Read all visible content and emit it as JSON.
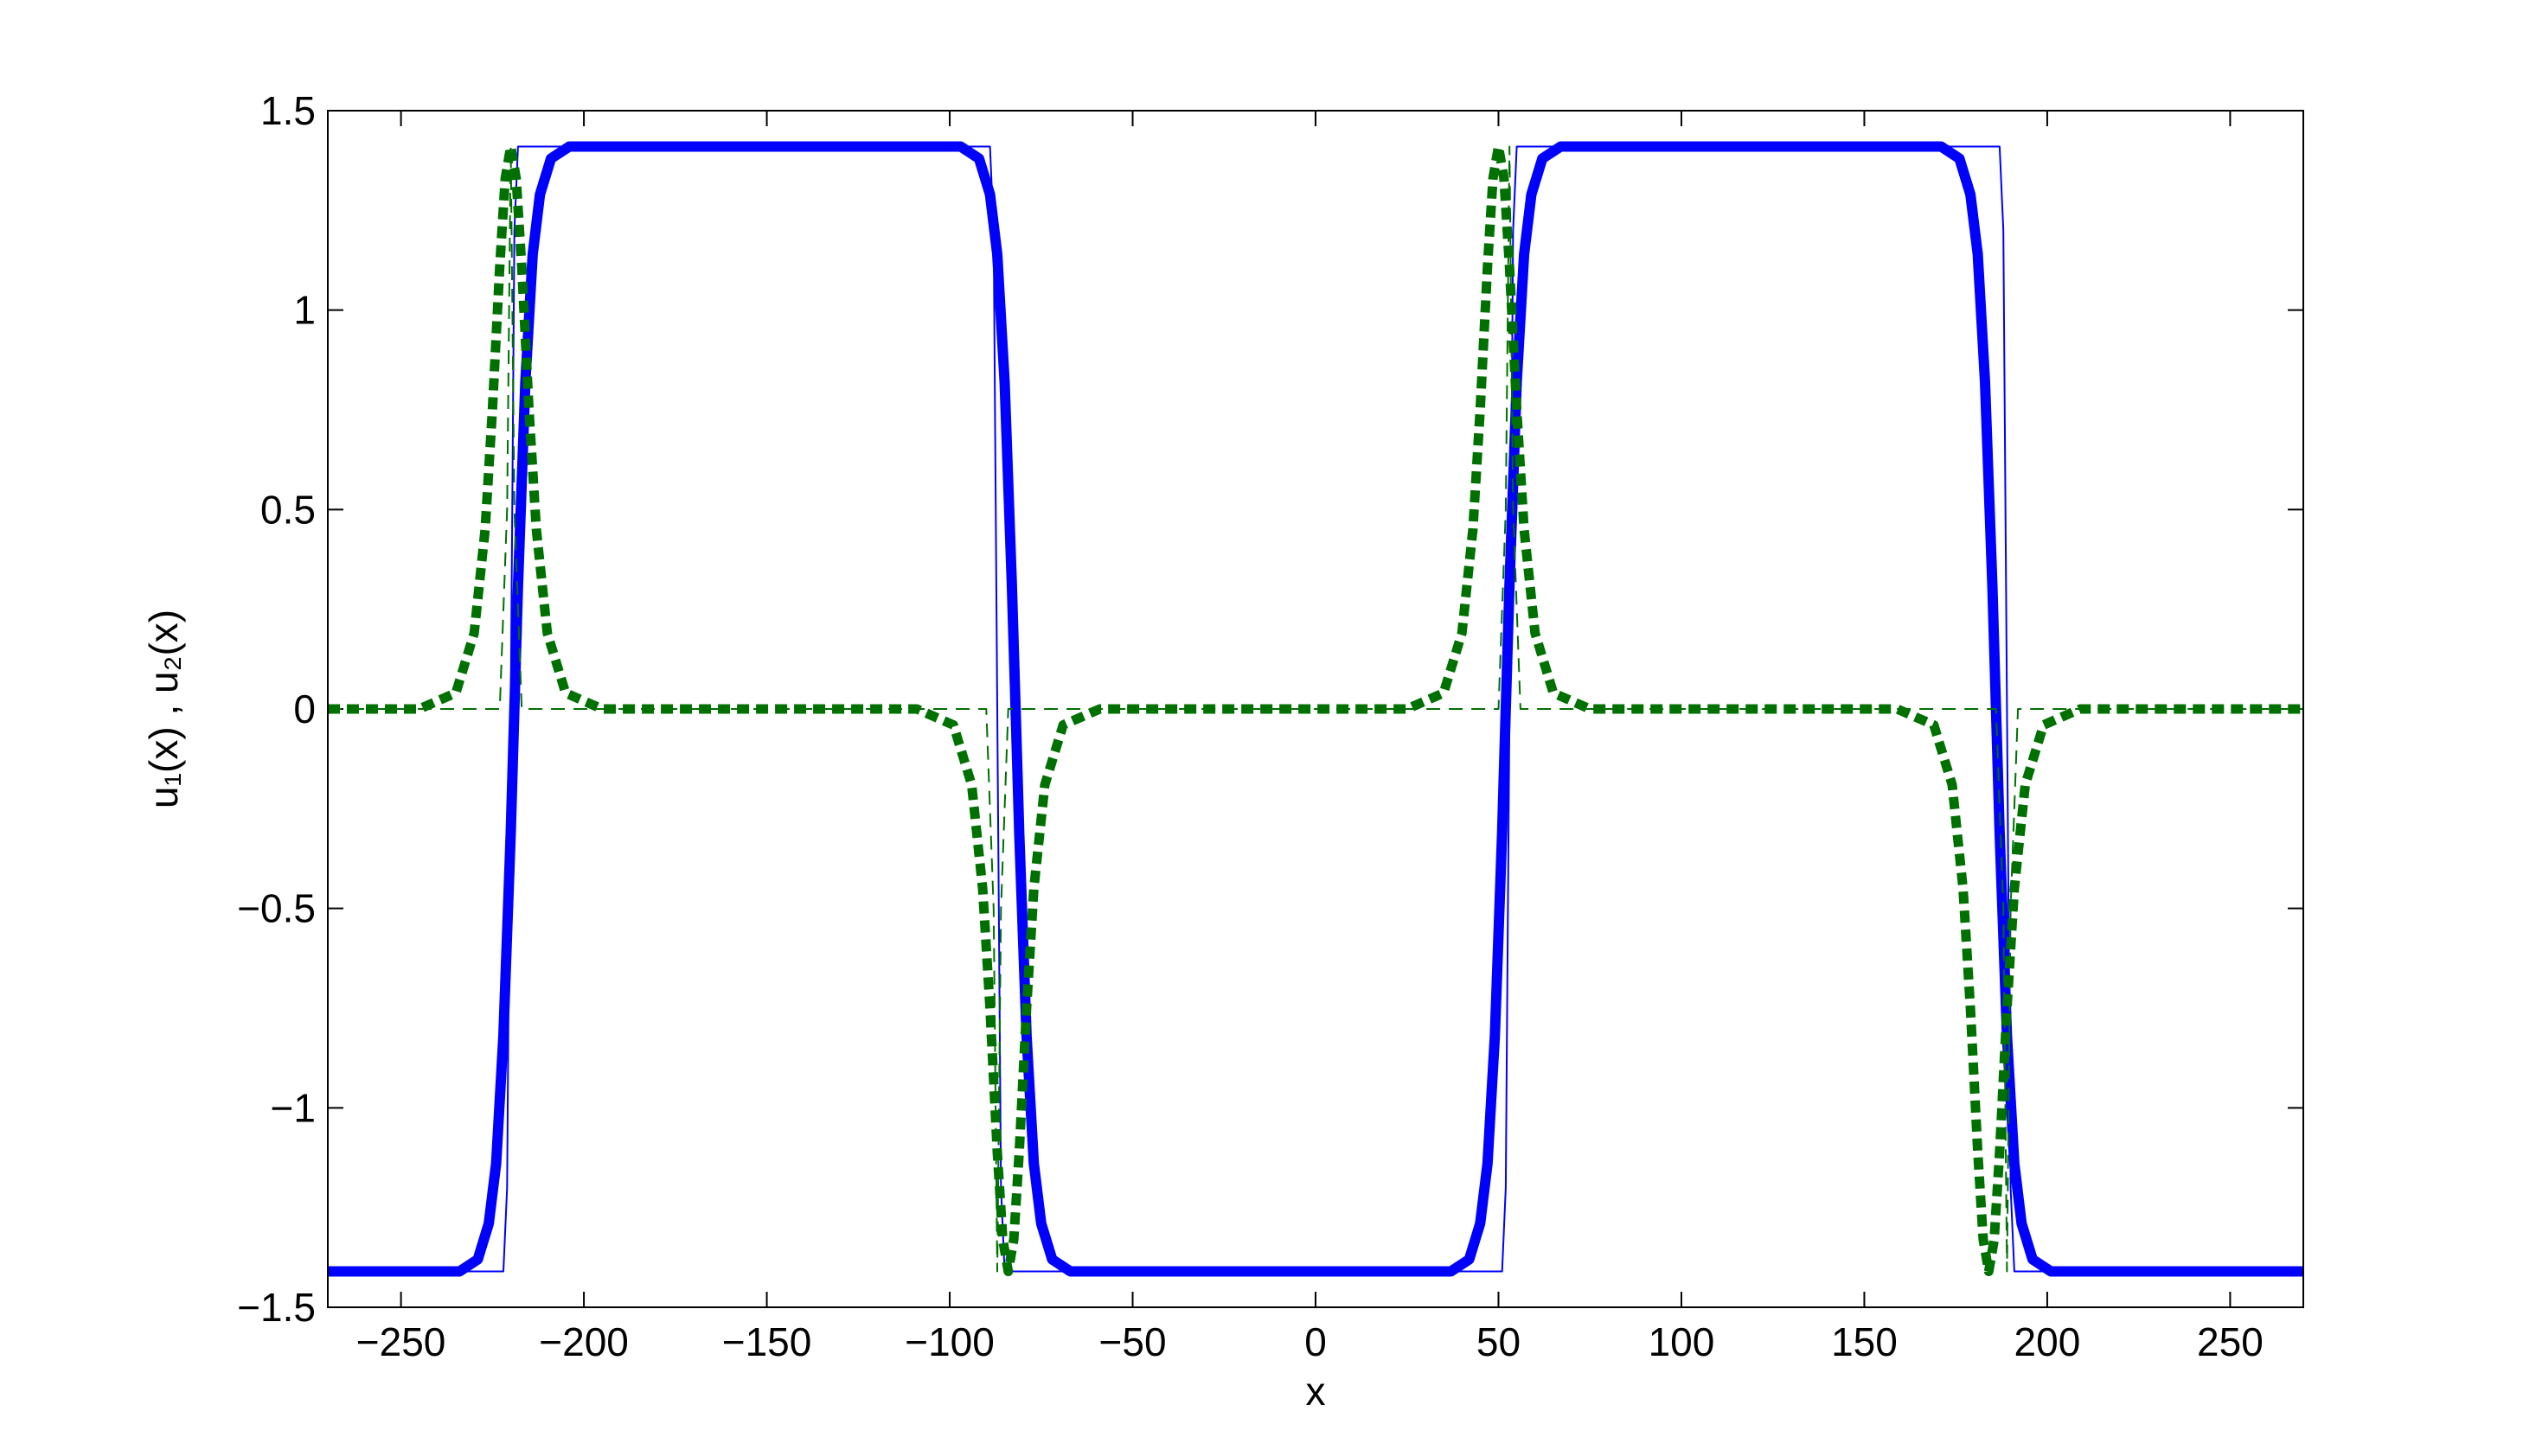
{
  "chart_data": {
    "type": "line",
    "x_label": "x",
    "y_label": "u₁(x) , u₂(x)",
    "xlim": [
      -270,
      270
    ],
    "ylim": [
      -1.5,
      1.5
    ],
    "xticks": [
      {
        "value": -250,
        "label": "−250"
      },
      {
        "value": -200,
        "label": "−200"
      },
      {
        "value": -150,
        "label": "−150"
      },
      {
        "value": -100,
        "label": "−100"
      },
      {
        "value": -50,
        "label": "−50"
      },
      0,
      50,
      100,
      150,
      200,
      250
    ],
    "yticks": [
      {
        "value": -1.5,
        "label": "−1.5"
      },
      {
        "value": -1,
        "label": "−1"
      },
      {
        "value": -0.5,
        "label": "−0.5"
      },
      0,
      0.5,
      1,
      1.5
    ],
    "grid": false,
    "series": [
      {
        "color": "#0000ff",
        "style": "solid",
        "width": "thick",
        "x": [
          -270,
          -234,
          -229,
          -226,
          -224,
          -222,
          -220,
          -219,
          -218,
          -216,
          -214,
          -212,
          -209,
          -204,
          -97,
          -92,
          -89,
          -87,
          -85,
          -83,
          -82,
          -81,
          -79,
          -77,
          -75,
          -72,
          -67,
          37,
          42,
          45,
          47,
          49,
          51,
          52,
          53,
          55,
          57,
          59,
          62,
          67,
          171,
          176,
          179,
          181,
          183,
          185,
          186,
          187,
          189,
          191,
          193,
          196,
          201,
          270
        ],
        "values": [
          -1.41,
          -1.41,
          -1.38,
          -1.29,
          -1.14,
          -0.82,
          -0.31,
          0,
          0.31,
          0.82,
          1.14,
          1.29,
          1.38,
          1.41,
          1.41,
          1.38,
          1.29,
          1.14,
          0.82,
          0.31,
          0,
          -0.31,
          -0.82,
          -1.14,
          -1.29,
          -1.38,
          -1.41,
          -1.41,
          -1.38,
          -1.29,
          -1.14,
          -0.82,
          -0.31,
          0,
          0.31,
          0.82,
          1.14,
          1.29,
          1.38,
          1.41,
          1.41,
          1.38,
          1.29,
          1.14,
          0.82,
          0.31,
          0,
          -0.31,
          -0.82,
          -1.14,
          -1.29,
          -1.38,
          -1.41,
          -1.41
        ]
      },
      {
        "color": "#0000ff",
        "style": "solid",
        "width": "thin",
        "x": [
          -270,
          -222,
          -221,
          -220,
          -219,
          -218,
          -89,
          -88,
          -87,
          -86,
          -85,
          51,
          52,
          53,
          54,
          55,
          187,
          188,
          189,
          190,
          191,
          270
        ],
        "values": [
          -1.41,
          -1.41,
          -1.2,
          0,
          1.2,
          1.41,
          1.41,
          1.2,
          0,
          -1.2,
          -1.41,
          -1.41,
          -1.2,
          0,
          1.2,
          1.41,
          1.41,
          1.2,
          0,
          -1.2,
          -1.41,
          -1.41
        ]
      },
      {
        "color": "#007000",
        "style": "dashed",
        "width": "thick",
        "x": [
          -270,
          -245,
          -235,
          -230,
          -227,
          -225,
          -223,
          -221.5,
          -220,
          -218.5,
          -217,
          -215,
          -213,
          -210,
          -205,
          -195,
          -109,
          -99,
          -94,
          -91,
          -89,
          -87,
          -85.5,
          -84,
          -82.5,
          -81,
          -79,
          -77,
          -74,
          -69,
          -59,
          25,
          35,
          40,
          43,
          45,
          47,
          48.5,
          50,
          51.5,
          53,
          55,
          57,
          60,
          65,
          75,
          159,
          169,
          174,
          177,
          179,
          181,
          182.5,
          184,
          185.5,
          187,
          189,
          191,
          194,
          199,
          209,
          270
        ],
        "values": [
          0,
          0,
          0.04,
          0.19,
          0.45,
          0.75,
          1.11,
          1.33,
          1.41,
          1.33,
          1.11,
          0.75,
          0.45,
          0.19,
          0.04,
          0,
          0,
          -0.04,
          -0.19,
          -0.45,
          -0.75,
          -1.11,
          -1.33,
          -1.41,
          -1.33,
          -1.11,
          -0.75,
          -0.45,
          -0.19,
          -0.04,
          0,
          0,
          0.04,
          0.19,
          0.45,
          0.75,
          1.11,
          1.33,
          1.41,
          1.33,
          1.11,
          0.75,
          0.45,
          0.19,
          0.04,
          0,
          0,
          -0.04,
          -0.19,
          -0.45,
          -0.75,
          -1.11,
          -1.33,
          -1.41,
          -1.33,
          -1.11,
          -0.75,
          -0.45,
          -0.19,
          -0.04,
          0,
          0
        ]
      },
      {
        "color": "#007000",
        "style": "dashed",
        "width": "thin",
        "x": [
          -270,
          -223,
          -221,
          -220,
          -219,
          -217,
          -90,
          -88,
          -87,
          -86,
          -84,
          50,
          52,
          53,
          54,
          56,
          186,
          188,
          189,
          190,
          192,
          270
        ],
        "values": [
          0,
          0,
          0.5,
          1.41,
          0.5,
          0,
          0,
          -0.5,
          -1.41,
          -0.5,
          0,
          0,
          0.5,
          1.41,
          0.5,
          0,
          0,
          -0.5,
          -1.41,
          -0.5,
          0,
          0
        ]
      }
    ]
  }
}
